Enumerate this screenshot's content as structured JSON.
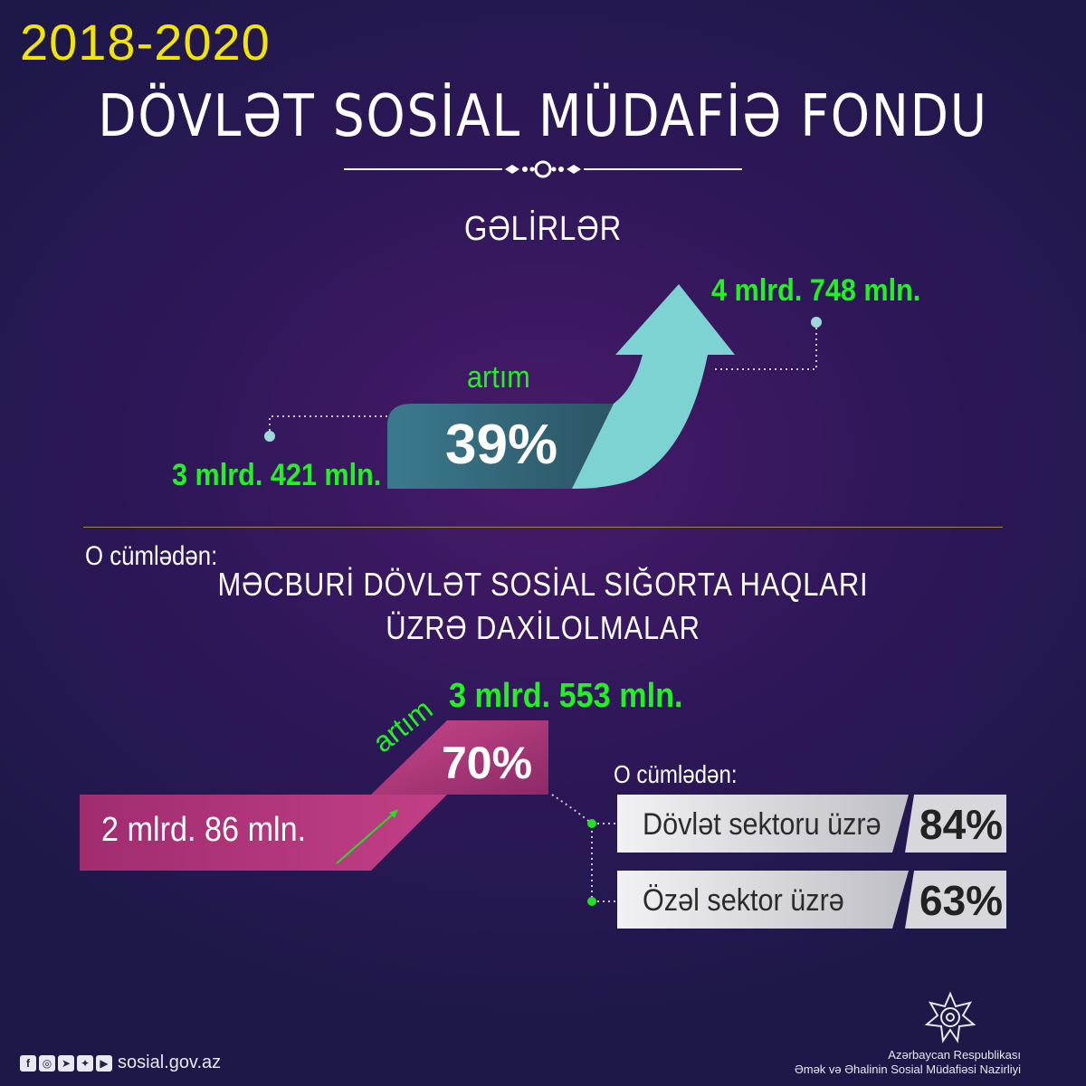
{
  "header": {
    "years": "2018-2020",
    "title": "DÖVLƏT SOSİAL MÜDAFİƏ FONDU"
  },
  "income": {
    "heading": "GƏLİRLƏR",
    "start_value": "3 mlrd. 421 mln.",
    "end_value": "4 mlrd. 748 mln.",
    "growth_label": "artım",
    "growth_percent": "39%"
  },
  "insurance": {
    "including_label": "O cümlədən:",
    "title_line1": "MƏCBURİ DÖVLƏT SOSİAL SIĞORTA HAQLARI",
    "title_line2": "ÜZRƏ DAXİLOLMALAR",
    "start_value": "2 mlrd. 86 mln.",
    "end_value": "3 mlrd. 553 mln.",
    "growth_label": "artım",
    "growth_percent": "70%",
    "breakdown_label": "O cümlədən:",
    "sectors": [
      {
        "label": "Dövlət sektoru üzrə",
        "percent": "84%"
      },
      {
        "label": "Özəl sektor üzrə",
        "percent": "63%"
      }
    ]
  },
  "footer": {
    "social_icons": [
      "facebook-icon",
      "instagram-icon",
      "telegram-icon",
      "twitter-icon",
      "youtube-icon"
    ],
    "website": "sosial.gov.az",
    "ministry_line1": "Azərbaycan Respublikası",
    "ministry_line2": "Əmək və Əhalinin Sosial Müdafiəsi Nazirliyi"
  },
  "colors": {
    "years": "#f2e600",
    "value_green": "#22f222",
    "income_arrow": "#7dd3d1",
    "insurance_arrow": "#b4377e",
    "separator": "#9c8a44"
  }
}
